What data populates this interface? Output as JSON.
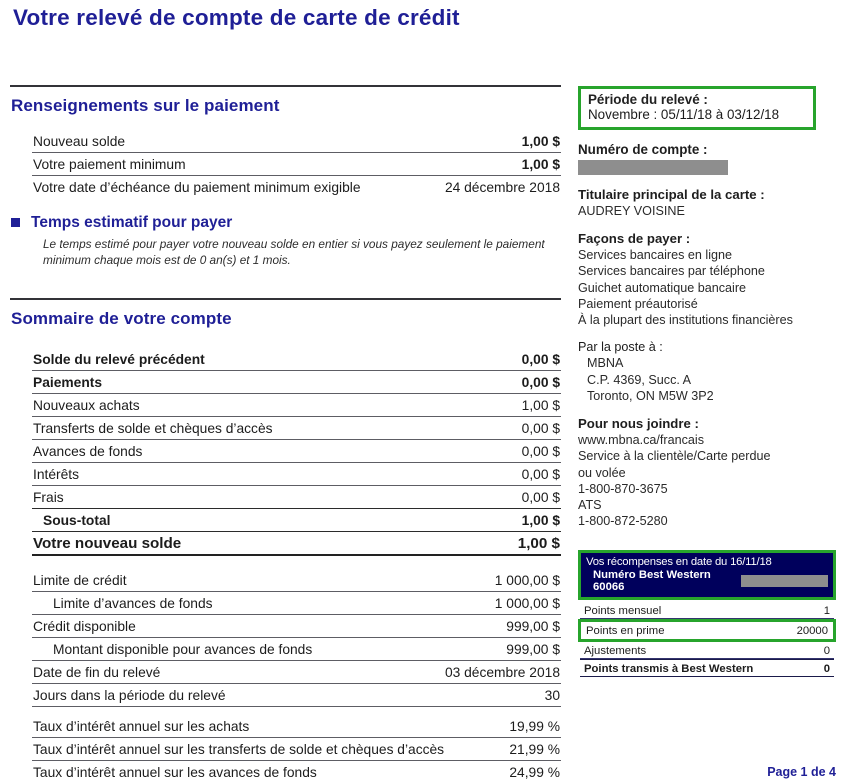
{
  "colors": {
    "navy_text": "#1f1f96",
    "rewards_header_bg": "#00005c",
    "highlight_green": "#27a42c",
    "redaction_gray": "#8e8e8e"
  },
  "title": "Votre relevé de compte de carte de crédit",
  "payment_info": {
    "heading": "Renseignements sur le paiement",
    "rows": [
      {
        "label": "Nouveau solde",
        "value": "1,00 $"
      },
      {
        "label": "Votre paiement minimum",
        "value": "1,00 $"
      },
      {
        "label": "Votre date d’échéance du paiement minimum exigible",
        "value": "24 décembre 2018"
      }
    ],
    "time_to_pay": {
      "heading": "Temps estimatif pour payer",
      "note": "Le temps estimé pour payer votre nouveau solde en entier si vous payez seulement le paiement minimum chaque mois est de 0 an(s) et 1 mois."
    }
  },
  "account_summary": {
    "heading": "Sommaire de votre compte",
    "rows": [
      {
        "label": "Solde du relevé précédent",
        "value": "0,00 $"
      },
      {
        "label": "Paiements",
        "value": "0,00 $"
      },
      {
        "label": "Nouveaux achats",
        "value": "1,00 $"
      },
      {
        "label": "Transferts de solde et chèques d’accès",
        "value": "0,00 $"
      },
      {
        "label": "Avances de fonds",
        "value": "0,00 $"
      },
      {
        "label": "Intérêts",
        "value": "0,00 $"
      },
      {
        "label": "Frais",
        "value": "0,00 $"
      },
      {
        "label": "Sous-total",
        "value": "1,00 $"
      },
      {
        "label": "Votre nouveau solde",
        "value": "1,00 $"
      },
      {
        "label": "Limite de crédit",
        "value": "1 000,00 $"
      },
      {
        "label": "Limite d’avances de fonds",
        "value": "1 000,00 $"
      },
      {
        "label": "Crédit disponible",
        "value": "999,00 $"
      },
      {
        "label": "Montant disponible pour avances de fonds",
        "value": "999,00 $"
      },
      {
        "label": "Date de fin du relevé",
        "value": "03 décembre 2018"
      },
      {
        "label": "Jours dans la période du relevé",
        "value": "30"
      },
      {
        "label": "Taux d’intérêt annuel sur les achats",
        "value": "19,99 %"
      },
      {
        "label": "Taux d’intérêt annuel sur les transferts de solde et chèques d’accès",
        "value": "21,99 %"
      },
      {
        "label": "Taux d’intérêt annuel sur les avances de fonds",
        "value": "24,99 %"
      }
    ]
  },
  "sidebar": {
    "period": {
      "label": "Période du relevé :",
      "value": "Novembre : 05/11/18 à 03/12/18"
    },
    "account_number": {
      "label": "Numéro de compte :"
    },
    "cardholder": {
      "label": "Titulaire principal de la carte :",
      "name": "AUDREY VOISINE"
    },
    "ways_to_pay": {
      "label": "Façons de payer :",
      "items": [
        "Services bancaires en ligne",
        "Services bancaires par téléphone",
        "Guichet automatique bancaire",
        "Paiement préautorisé",
        "À la plupart des institutions financières"
      ]
    },
    "mail": {
      "label": "Par la poste à :",
      "lines": [
        "MBNA",
        "C.P. 4369, Succ. A",
        "Toronto, ON M5W 3P2"
      ]
    },
    "contact": {
      "label": "Pour nous joindre :",
      "lines": [
        "www.mbna.ca/francais",
        "Service à la clientèle/Carte perdue",
        "ou volée",
        "1-800-870-3675",
        "ATS",
        "1-800-872-5280"
      ]
    },
    "rewards": {
      "header": "Vos récompenses en date du 16/11/18",
      "subheader": "Numéro Best Western 60066",
      "rows": [
        {
          "label": "Points mensuel",
          "value": "1"
        },
        {
          "label": "Points en prime",
          "value": "20000"
        },
        {
          "label": "Ajustements",
          "value": "0"
        },
        {
          "label": "Points transmis à Best Western",
          "value": "0"
        }
      ]
    }
  },
  "footer": {
    "page": "Page 1 de 4"
  }
}
